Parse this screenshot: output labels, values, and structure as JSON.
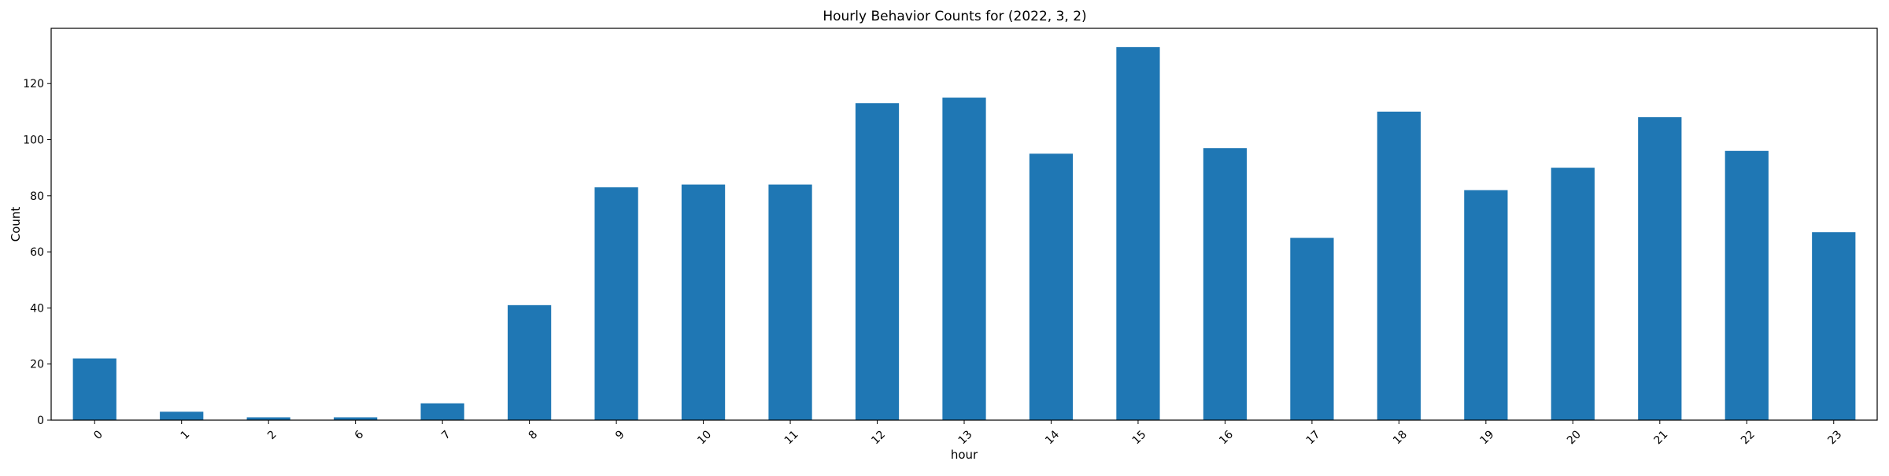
{
  "chart_data": {
    "type": "bar",
    "title": "Hourly Behavior Counts for (2022, 3, 2)",
    "xlabel": "hour",
    "ylabel": "Count",
    "categories": [
      "0",
      "1",
      "2",
      "6",
      "7",
      "8",
      "9",
      "10",
      "11",
      "12",
      "13",
      "14",
      "15",
      "16",
      "17",
      "18",
      "19",
      "20",
      "21",
      "22",
      "23"
    ],
    "values": [
      22,
      3,
      1,
      1,
      6,
      41,
      83,
      84,
      84,
      113,
      115,
      95,
      133,
      97,
      65,
      110,
      82,
      90,
      108,
      96,
      67
    ],
    "ylim": [
      0,
      139.7
    ],
    "yticks": [
      0,
      20,
      40,
      60,
      80,
      100,
      120
    ],
    "bar_color": "#1f77b4",
    "grid": false,
    "legend": "none",
    "xtick_rotation": 45
  }
}
